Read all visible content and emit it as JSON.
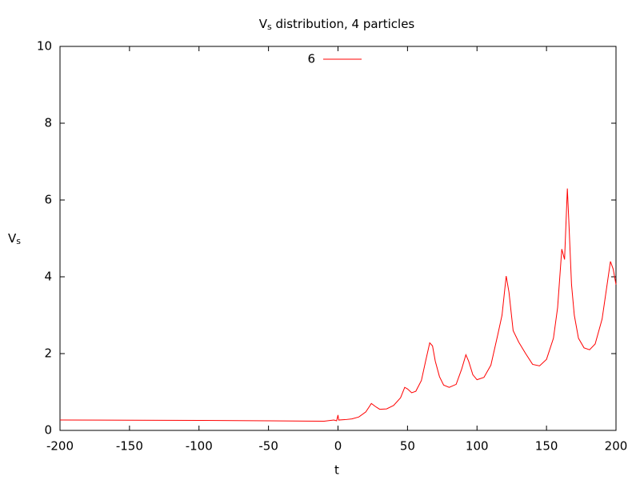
{
  "chart_data": {
    "type": "line",
    "title": [
      "V",
      "s",
      " distribution, 4 particles"
    ],
    "xlabel": "t",
    "ylabel": [
      "V",
      "s"
    ],
    "x": [
      -200,
      -150,
      -100,
      -50,
      -10,
      -3,
      -1,
      0,
      0.5,
      5,
      10,
      15,
      20,
      24,
      27,
      30,
      35,
      40,
      45,
      48,
      50,
      53,
      56,
      60,
      63,
      66,
      68,
      70,
      73,
      76,
      80,
      85,
      89,
      92,
      94,
      97,
      100,
      105,
      110,
      115,
      118,
      121,
      123,
      126,
      130,
      135,
      140,
      145,
      150,
      155,
      158,
      161,
      163,
      165,
      166,
      168,
      170,
      173,
      177,
      181,
      185,
      190,
      194,
      196,
      198,
      200
    ],
    "series": [
      {
        "name": "6",
        "color": "#ff0000",
        "values": [
          0.27,
          0.265,
          0.26,
          0.25,
          0.24,
          0.27,
          0.25,
          0.4,
          0.27,
          0.28,
          0.3,
          0.35,
          0.48,
          0.7,
          0.62,
          0.55,
          0.56,
          0.65,
          0.85,
          1.12,
          1.08,
          0.98,
          1.02,
          1.3,
          1.8,
          2.28,
          2.2,
          1.8,
          1.4,
          1.18,
          1.12,
          1.2,
          1.6,
          1.97,
          1.8,
          1.45,
          1.32,
          1.38,
          1.7,
          2.5,
          3.0,
          4.02,
          3.6,
          2.6,
          2.3,
          2.0,
          1.72,
          1.68,
          1.85,
          2.4,
          3.2,
          4.72,
          4.45,
          6.3,
          5.5,
          3.8,
          3.0,
          2.4,
          2.15,
          2.1,
          2.25,
          2.9,
          3.9,
          4.4,
          4.2,
          3.8
        ]
      }
    ],
    "xlim": [
      -200,
      200
    ],
    "xticks": [
      -200,
      -150,
      -100,
      -50,
      0,
      50,
      100,
      150,
      200
    ],
    "ylim": [
      0,
      10
    ],
    "yticks": [
      0,
      2,
      4,
      6,
      8,
      10
    ],
    "legend": "top-center"
  }
}
